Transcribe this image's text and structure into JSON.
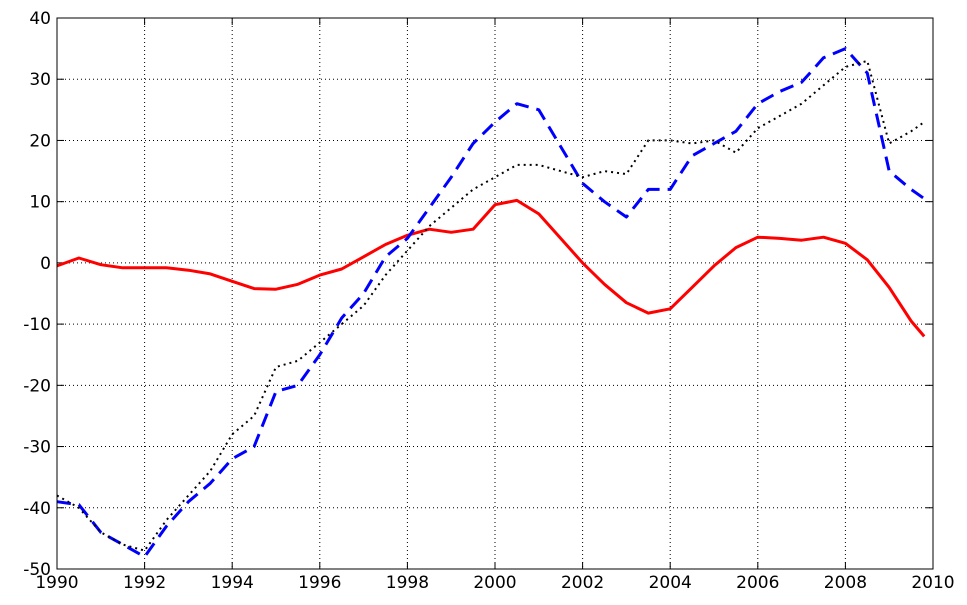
{
  "chart_data": {
    "type": "line",
    "x": [
      1990,
      1990.5,
      1991,
      1991.5,
      1992,
      1992.5,
      1993,
      1993.5,
      1994,
      1994.5,
      1995,
      1995.5,
      1996,
      1996.5,
      1997,
      1997.5,
      1998,
      1998.5,
      1999,
      1999.5,
      2000,
      2000.5,
      2001,
      2001.5,
      2002,
      2002.5,
      2003,
      2003.5,
      2004,
      2004.5,
      2005,
      2005.5,
      2006,
      2006.5,
      2007,
      2007.5,
      2008,
      2008.5,
      2009,
      2009.5,
      2009.8
    ],
    "series": [
      {
        "color": "#ff0000",
        "style": "solid",
        "values": [
          -0.5,
          0.8,
          -0.3,
          -0.8,
          -0.8,
          -0.8,
          -1.2,
          -1.8,
          -3,
          -4.2,
          -4.3,
          -3.5,
          -2,
          -1,
          1,
          3,
          4.5,
          5.5,
          5,
          5.5,
          9.5,
          10.2,
          8,
          4,
          0,
          -3.5,
          -6.5,
          -8.2,
          -7.5,
          -4,
          -0.5,
          2.5,
          4.2,
          4,
          3.7,
          4.2,
          3.2,
          0.5,
          -4,
          -9.5,
          -12
        ]
      },
      {
        "color": "#0000ff",
        "style": "dashed",
        "values": [
          -39,
          -39.5,
          -44,
          -46,
          -48,
          -43,
          -39,
          -36,
          -32,
          -30,
          -21,
          -20,
          -15,
          -9,
          -5,
          1,
          4,
          9,
          14,
          19.5,
          23,
          26,
          25,
          19,
          13,
          10,
          7.5,
          12,
          12,
          17.5,
          19.5,
          21.5,
          26,
          28,
          29.5,
          33.5,
          35,
          31,
          15,
          12,
          10.5
        ]
      },
      {
        "color": "#000000",
        "style": "dotted",
        "values": [
          -38,
          -40,
          -44,
          -46,
          -47,
          -42,
          -38,
          -34,
          -28,
          -25,
          -17,
          -16,
          -13,
          -10,
          -7,
          -2,
          2,
          6,
          9,
          12,
          14,
          16,
          16,
          15,
          14,
          15,
          14.5,
          20,
          20,
          19.5,
          20,
          18,
          22,
          24,
          26,
          29,
          32,
          33,
          19.5,
          21.5,
          23
        ]
      }
    ],
    "xlim": [
      1990,
      2010
    ],
    "xticks": [
      1990,
      1992,
      1994,
      1996,
      1998,
      2000,
      2002,
      2004,
      2006,
      2008,
      2010
    ],
    "ylim": [
      -50,
      40
    ],
    "yticks": [
      -50,
      -40,
      -30,
      -20,
      -10,
      0,
      10,
      20,
      30,
      40
    ],
    "grid": true
  }
}
